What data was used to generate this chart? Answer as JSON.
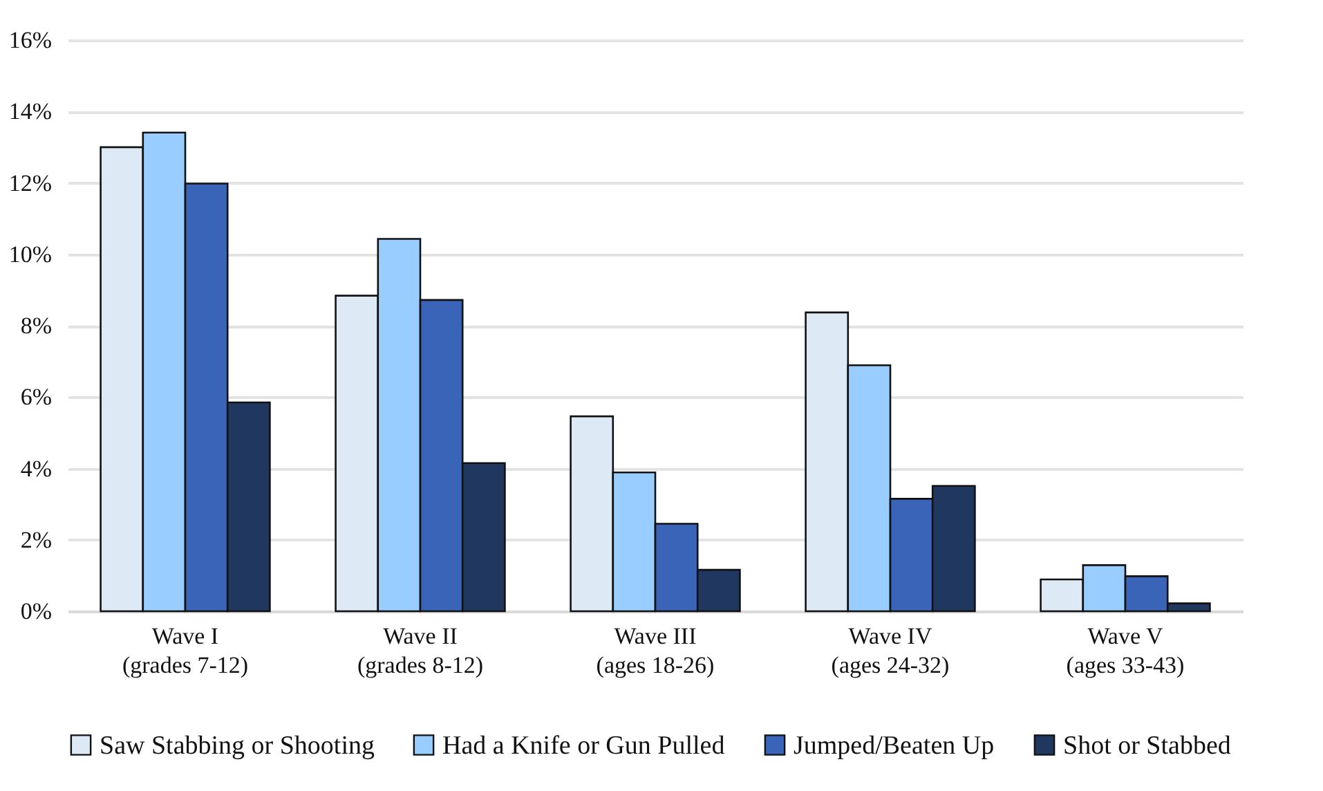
{
  "chart_data": {
    "type": "bar",
    "categories": [
      "Wave I\n(grades 7-12)",
      "Wave II\n(grades 8-12)",
      "Wave III\n(ages 18-26)",
      "Wave IV\n(ages 24-32)",
      "Wave V\n(ages 33-43)"
    ],
    "series": [
      {
        "name": "Saw Stabbing or Shooting",
        "color": "#dde9f5",
        "values": [
          13.0,
          8.84,
          5.46,
          8.37,
          0.89
        ]
      },
      {
        "name": "Had a Knife or Gun Pulled",
        "color": "#99ccff",
        "values": [
          13.41,
          10.43,
          3.89,
          6.89,
          1.29
        ]
      },
      {
        "name": "Jumped/Beaten Up",
        "color": "#3a64b8",
        "values": [
          11.98,
          8.72,
          2.45,
          3.15,
          0.98
        ]
      },
      {
        "name": "Shot or Stabbed",
        "color": "#20375f",
        "values": [
          5.85,
          4.15,
          1.16,
          3.51,
          0.22
        ]
      }
    ],
    "ylim": [
      0,
      16
    ],
    "yticks": [
      {
        "value": 0,
        "label": "0%"
      },
      {
        "value": 2,
        "label": "2%"
      },
      {
        "value": 4,
        "label": "4%"
      },
      {
        "value": 6,
        "label": "6%"
      },
      {
        "value": 8,
        "label": "8%"
      },
      {
        "value": 10,
        "label": "10%"
      },
      {
        "value": 12,
        "label": "12%"
      },
      {
        "value": 14,
        "label": "14%"
      },
      {
        "value": 16,
        "label": "16%"
      }
    ],
    "grid": "y",
    "legend": "bottom"
  }
}
